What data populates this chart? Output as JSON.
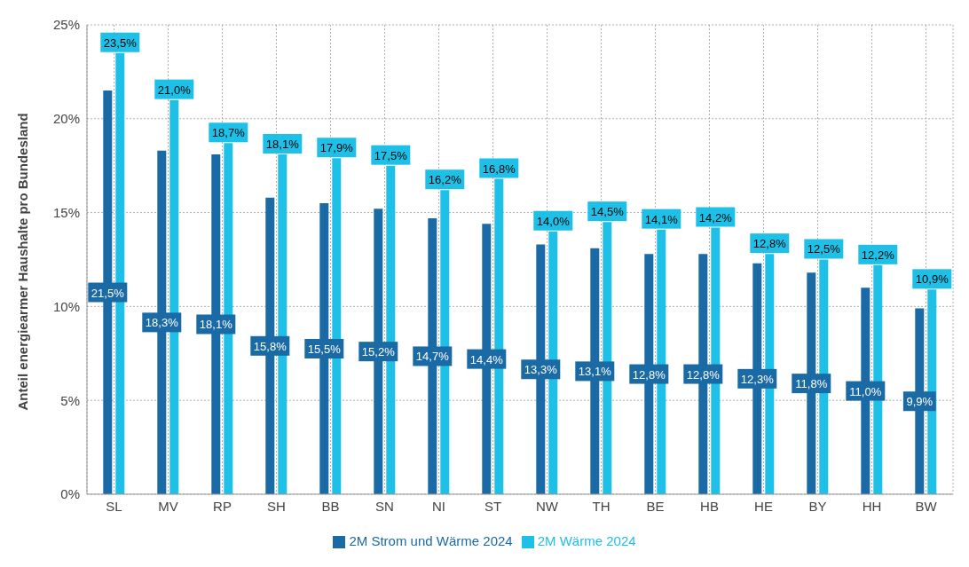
{
  "chart_data": {
    "type": "bar",
    "ylabel": "Anteil energiearmer Haushalte pro Bundesland",
    "categories": [
      "SL",
      "MV",
      "RP",
      "SH",
      "BB",
      "SN",
      "NI",
      "ST",
      "NW",
      "TH",
      "BE",
      "HB",
      "HE",
      "BY",
      "HH",
      "BW"
    ],
    "series": [
      {
        "name": "2M Strom und Wärme 2024",
        "color": "#1a6aa6",
        "values": [
          21.5,
          18.3,
          18.1,
          15.8,
          15.5,
          15.2,
          14.7,
          14.4,
          13.3,
          13.1,
          12.8,
          12.8,
          12.3,
          11.8,
          11.0,
          9.9
        ],
        "value_labels": [
          "21,5%",
          "18,3%",
          "18,1%",
          "15,8%",
          "15,5%",
          "15,2%",
          "14,7%",
          "14,4%",
          "13,3%",
          "13,1%",
          "12,8%",
          "12,8%",
          "12,3%",
          "11,8%",
          "11,0%",
          "9,9%"
        ]
      },
      {
        "name": "2M Wärme 2024",
        "color": "#1fc0e8",
        "values": [
          23.5,
          21.0,
          18.7,
          18.1,
          17.9,
          17.5,
          16.2,
          16.8,
          14.0,
          14.5,
          14.1,
          14.2,
          12.8,
          12.5,
          12.2,
          10.9
        ],
        "value_labels": [
          "23,5%",
          "21,0%",
          "18,7%",
          "18,1%",
          "17,9%",
          "17,5%",
          "16,2%",
          "16,8%",
          "14,0%",
          "14,5%",
          "14,1%",
          "14,2%",
          "12,8%",
          "12,5%",
          "12,2%",
          "10,9%"
        ]
      }
    ],
    "ylim": [
      0,
      25
    ],
    "yticks": [
      {
        "value": 0,
        "label": "0%"
      },
      {
        "value": 5,
        "label": "5%"
      },
      {
        "value": 10,
        "label": "10%"
      },
      {
        "value": 15,
        "label": "15%"
      },
      {
        "value": 20,
        "label": "20%"
      },
      {
        "value": 25,
        "label": "25%"
      }
    ],
    "grid": true,
    "legend": "bottom"
  }
}
